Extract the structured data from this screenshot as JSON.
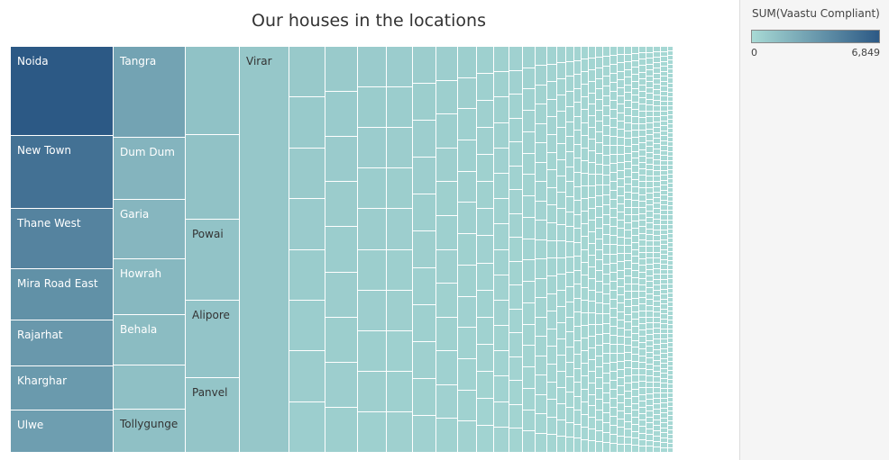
{
  "chart_data": {
    "type": "treemap",
    "title": "Our houses in the locations",
    "measure": "SUM(Vaastu Compliant)",
    "color_range": [
      0,
      6849
    ],
    "color_low": "#a8dad5",
    "color_high": "#2c5985",
    "legend": {
      "title": "SUM(Vaastu Compliant)",
      "min_label": "0",
      "max_label": "6,849",
      "position": "top-right"
    },
    "items": [
      {
        "name": "Noida",
        "value": 6849
      },
      {
        "name": "New Town",
        "value": 5600
      },
      {
        "name": "Thane West",
        "value": 4600
      },
      {
        "name": "Mira Road East",
        "value": 3900
      },
      {
        "name": "Rajarhat",
        "value": 3500
      },
      {
        "name": "Kharghar",
        "value": 3400
      },
      {
        "name": "Ulwe",
        "value": 3200
      },
      {
        "name": "Tangra",
        "value": 2900
      },
      {
        "name": "Dum Dum",
        "value": 2000
      },
      {
        "name": "Garia",
        "value": 1900
      },
      {
        "name": "Howrah",
        "value": 1800
      },
      {
        "name": "Behala",
        "value": 1600
      },
      {
        "name": "",
        "value": 1400
      },
      {
        "name": "Tollygunge",
        "value": 1400
      },
      {
        "name": "",
        "value": 1300
      },
      {
        "name": "",
        "value": 1250
      },
      {
        "name": "Powai",
        "value": 1200
      },
      {
        "name": "Alipore",
        "value": 1150
      },
      {
        "name": "Panvel",
        "value": 1100
      },
      {
        "name": "Virar",
        "value": 1000
      }
    ]
  }
}
